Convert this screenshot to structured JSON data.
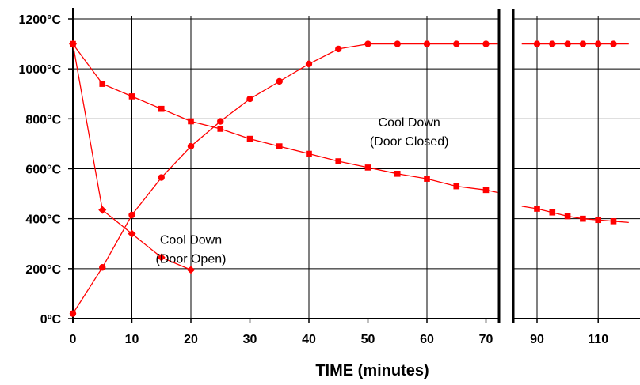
{
  "chart_data": {
    "type": "line",
    "title": "",
    "xlabel": "TIME (minutes)",
    "ylabel": "",
    "series_color": "#ff0000",
    "grid": true,
    "broken_x_axis": true,
    "y_ticks": [
      {
        "value": 0,
        "label": "0ºC"
      },
      {
        "value": 200,
        "label": "200°C"
      },
      {
        "value": 400,
        "label": "400°C"
      },
      {
        "value": 600,
        "label": "600°C"
      },
      {
        "value": 800,
        "label": "800°C"
      },
      {
        "value": 1000,
        "label": "1000°C"
      },
      {
        "value": 1200,
        "label": "1200°C"
      }
    ],
    "ylim": [
      0,
      1200
    ],
    "panels": [
      {
        "xlim": [
          0,
          72
        ],
        "x_ticks": [
          0,
          10,
          20,
          30,
          40,
          50,
          60,
          70
        ]
      },
      {
        "xlim": [
          85,
          120
        ],
        "x_ticks": [
          90,
          110
        ]
      }
    ],
    "annotations": [
      {
        "lines": [
          "Cool Down",
          "(Door Closed)"
        ],
        "x": 57,
        "y": 770
      },
      {
        "lines": [
          "Cool Down",
          "(Door Open)"
        ],
        "x": 20,
        "y": 300
      }
    ],
    "series": [
      {
        "marker": "circle",
        "points": [
          [
            0,
            20
          ],
          [
            5,
            205
          ],
          [
            10,
            415
          ],
          [
            15,
            565
          ],
          [
            20,
            690
          ],
          [
            25,
            790
          ],
          [
            30,
            880
          ],
          [
            35,
            950
          ],
          [
            40,
            1020
          ],
          [
            45,
            1080
          ],
          [
            50,
            1100
          ],
          [
            55,
            1100
          ],
          [
            60,
            1100
          ],
          [
            65,
            1100
          ],
          [
            70,
            1100
          ],
          [
            72,
            1100
          ],
          [
            85,
            1100
          ],
          [
            90,
            1100
          ],
          [
            95,
            1100
          ],
          [
            100,
            1100
          ],
          [
            105,
            1100
          ],
          [
            110,
            1100
          ],
          [
            115,
            1100
          ],
          [
            120,
            1100
          ]
        ]
      },
      {
        "marker": "square",
        "points": [
          [
            0,
            1100
          ],
          [
            5,
            940
          ],
          [
            10,
            890
          ],
          [
            15,
            840
          ],
          [
            20,
            790
          ],
          [
            25,
            760
          ],
          [
            30,
            720
          ],
          [
            35,
            690
          ],
          [
            40,
            660
          ],
          [
            45,
            630
          ],
          [
            50,
            605
          ],
          [
            55,
            580
          ],
          [
            60,
            560
          ],
          [
            65,
            530
          ],
          [
            70,
            515
          ],
          [
            72,
            505
          ],
          [
            85,
            450
          ],
          [
            90,
            440
          ],
          [
            95,
            425
          ],
          [
            100,
            410
          ],
          [
            105,
            400
          ],
          [
            110,
            395
          ],
          [
            115,
            390
          ],
          [
            120,
            385
          ]
        ]
      },
      {
        "marker": "diamond",
        "points": [
          [
            0,
            1100
          ],
          [
            5,
            435
          ],
          [
            10,
            340
          ],
          [
            15,
            245
          ],
          [
            20,
            195
          ]
        ]
      }
    ]
  }
}
